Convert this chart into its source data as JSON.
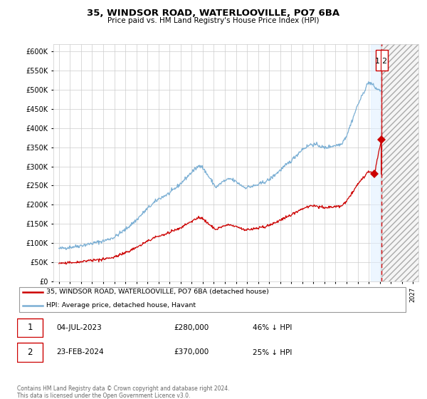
{
  "title": "35, WINDSOR ROAD, WATERLOOVILLE, PO7 6BA",
  "subtitle": "Price paid vs. HM Land Registry's House Price Index (HPI)",
  "hpi_color": "#7bafd4",
  "price_color": "#cc0000",
  "ylim": [
    0,
    620000
  ],
  "yticks": [
    0,
    50000,
    100000,
    150000,
    200000,
    250000,
    300000,
    350000,
    400000,
    450000,
    500000,
    550000,
    600000
  ],
  "sale1_date": "04-JUL-2023",
  "sale1_price": 280000,
  "sale1_year": 2023.51,
  "sale2_date": "23-FEB-2024",
  "sale2_price": 370000,
  "sale2_year": 2024.14,
  "legend_red_label": "35, WINDSOR ROAD, WATERLOOVILLE, PO7 6BA (detached house)",
  "legend_blue_label": "HPI: Average price, detached house, Havant",
  "footer": "Contains HM Land Registry data © Crown copyright and database right 2024.\nThis data is licensed under the Open Government Licence v3.0.",
  "future_start_year": 2024.17,
  "xmin": 1994.5,
  "xmax": 2027.5
}
